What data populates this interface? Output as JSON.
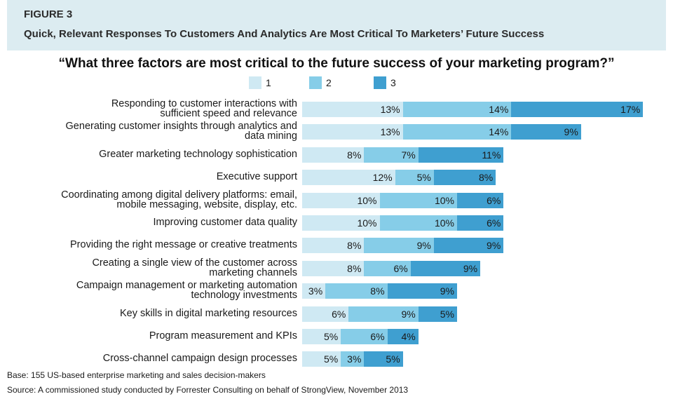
{
  "header": {
    "figure_label": "FIGURE 3",
    "title": "Quick, Relevant Responses To Customers And Analytics Are Most Critical To Marketers’ Future Success"
  },
  "question": "“What three factors are most critical to the future success of your marketing program?”",
  "colors": {
    "1": "#cfe9f3",
    "2": "#86cde8",
    "3": "#3f9fd0",
    "header_bg": "#dcecf1"
  },
  "chart_data": {
    "type": "bar",
    "orientation": "horizontal",
    "stacked": true,
    "categories": [
      [
        "Responding to customer interactions with",
        "sufficient speed and relevance"
      ],
      [
        "Generating customer insights through analytics and",
        "data mining"
      ],
      [
        "Greater marketing technology sophistication"
      ],
      [
        "Executive support"
      ],
      [
        "Coordinating among digital delivery platforms: email,",
        "mobile messaging, website, display, etc."
      ],
      [
        "Improving customer data quality"
      ],
      [
        "Providing the right message or creative treatments"
      ],
      [
        "Creating a single view of the customer across",
        "marketing channels"
      ],
      [
        "Campaign management or marketing automation",
        "technology investments"
      ],
      [
        "Key skills in digital marketing resources"
      ],
      [
        "Program measurement and KPIs"
      ],
      [
        "Cross-channel campaign design processes"
      ]
    ],
    "series": [
      {
        "name": "1",
        "values": [
          13,
          13,
          8,
          12,
          10,
          10,
          8,
          8,
          3,
          6,
          5,
          5
        ]
      },
      {
        "name": "2",
        "values": [
          14,
          14,
          7,
          5,
          10,
          10,
          9,
          6,
          8,
          9,
          6,
          3
        ]
      },
      {
        "name": "3",
        "values": [
          17,
          9,
          11,
          8,
          6,
          6,
          9,
          9,
          9,
          5,
          4,
          5
        ]
      }
    ],
    "value_suffix": "%",
    "legend_position": "top",
    "grid": false
  },
  "footnotes": {
    "base": "Base: 155 US-based enterprise marketing and sales decision-makers",
    "source": "Source: A commissioned study conducted by Forrester Consulting on behalf of StrongView, November 2013"
  }
}
